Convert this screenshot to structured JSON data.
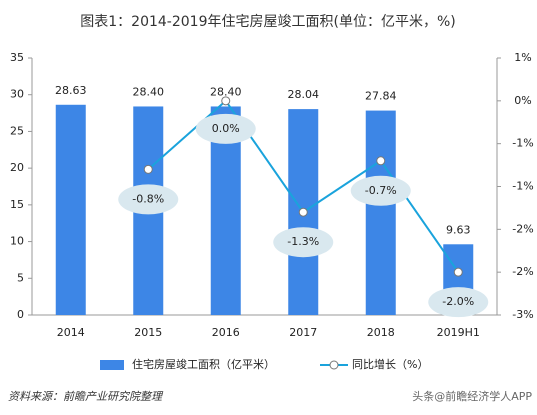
{
  "chart_data": {
    "type": "bar_line",
    "title": "图表1：2014-2019年住宅房屋竣工面积(单位：亿平米，%)",
    "categories": [
      "2014",
      "2015",
      "2016",
      "2017",
      "2018",
      "2019H1"
    ],
    "series": [
      {
        "name": "住宅房屋竣工面积（亿平米）",
        "type": "bar",
        "color": "#3d86e6",
        "values": [
          28.63,
          28.4,
          28.4,
          28.04,
          27.84,
          9.63
        ],
        "value_labels": [
          "28.63",
          "28.40",
          "28.40",
          "28.04",
          "27.84",
          "9.63"
        ]
      },
      {
        "name": "同比增长（%）",
        "type": "line",
        "axis": "y2",
        "color": "#1aa3dc",
        "values": [
          null,
          -0.8,
          0.0,
          -1.3,
          -0.7,
          -2.0
        ],
        "value_labels": [
          null,
          "-0.8%",
          "0.0%",
          "-1.3%",
          "-0.7%",
          "-2.0%"
        ]
      }
    ],
    "ylim": [
      0,
      35
    ],
    "yticks": [
      0,
      5,
      10,
      15,
      20,
      25,
      30,
      35
    ],
    "y2lim": [
      -2.5,
      0.5
    ],
    "y2ticks": [
      {
        "value": -2.5,
        "label": "-3%"
      },
      {
        "value": -2,
        "label": "-2%"
      },
      {
        "value": -1.5,
        "label": "-2%"
      },
      {
        "value": -1,
        "label": "-1%"
      },
      {
        "value": -0.5,
        "label": "-1%"
      },
      {
        "value": 0,
        "label": "0%"
      },
      {
        "value": 0.5,
        "label": "1%"
      }
    ],
    "source": "资料来源：前瞻产业研究院整理",
    "watermark": "头条@前瞻经济学人APP"
  }
}
